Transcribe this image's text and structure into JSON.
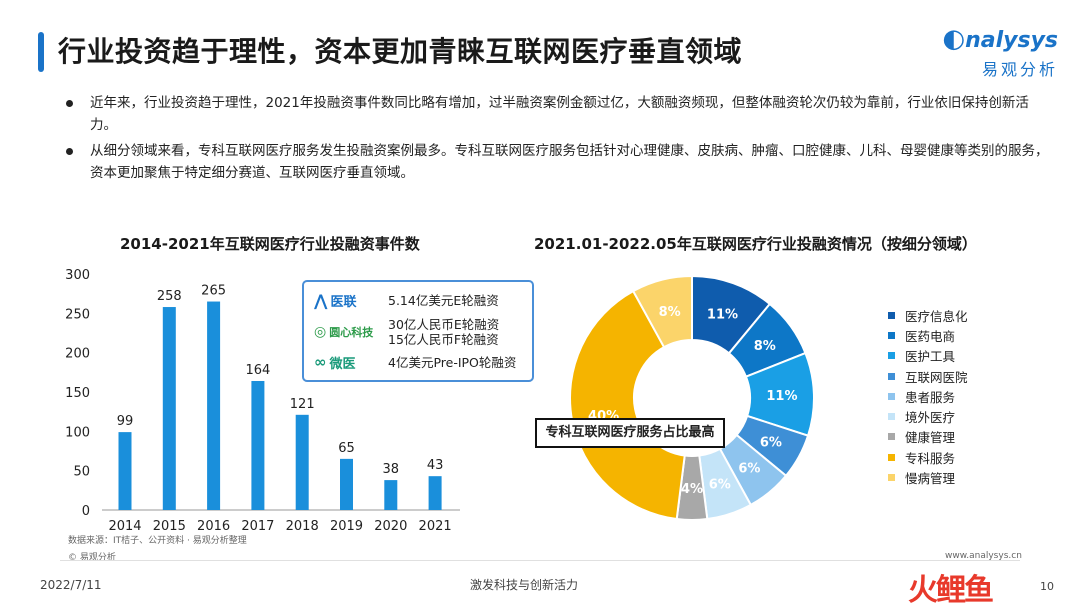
{
  "header": {
    "title": "行业投资趋于理性，资本更加青睐互联网医疗垂直领域",
    "logo_en": "nalysys",
    "logo_cn": "易观分析"
  },
  "bullets": [
    "近年来，行业投资趋于理性，2021年投融资事件数同比略有增加，过半融资案例金额过亿，大额融资频现，但整体融资轮次仍较为靠前，行业依旧保持创新活力。",
    "从细分领域来看，专科互联网医疗服务发生投融资案例最多。专科互联网医疗服务包括针对心理健康、皮肤病、肿瘤、口腔健康、儿科、母婴健康等类别的服务，资本更加聚焦于特定细分赛道、互联网医疗垂直领域。"
  ],
  "left_chart_title": "2014-2021年互联网医疗行业投融资事件数",
  "right_chart_title": "2021.01-2022.05年互联网医疗行业投融资情况（按细分领域）",
  "callout": {
    "rows": [
      {
        "name": "医联",
        "text": "5.14亿美元E轮融资"
      },
      {
        "name": "圆心科技",
        "text": "30亿人民币E轮融资\n15亿人民币F轮融资"
      },
      {
        "name": "微医",
        "text": "4亿美元Pre-IPO轮融资"
      }
    ]
  },
  "pie_callout": "专科互联网医疗服务占比最高",
  "source_note": "数据来源：IT桔子、公开资料 · 易观分析整理",
  "copyright": "© 易观分析",
  "website": "www.analysys.cn",
  "footer": {
    "date": "2022/7/11",
    "slogan": "激发科技与创新活力",
    "page": "10",
    "watermark": "火鲤鱼"
  },
  "chart_data": [
    {
      "type": "bar",
      "title": "2014-2021年互联网医疗行业投融资事件数",
      "categories": [
        "2014",
        "2015",
        "2016",
        "2017",
        "2018",
        "2019",
        "2020",
        "2021"
      ],
      "values": [
        99,
        258,
        265,
        164,
        121,
        65,
        38,
        43
      ],
      "ylim": [
        0,
        300
      ],
      "yticks": [
        0,
        50,
        100,
        150,
        200,
        250,
        300
      ],
      "color": "#1a8fdb"
    },
    {
      "type": "pie",
      "donut": true,
      "title": "2021.01-2022.05年互联网医疗行业投融资情况（按细分领域）",
      "categories": [
        "医疗信息化",
        "医药电商",
        "医护工具",
        "互联网医院",
        "患者服务",
        "境外医疗",
        "健康管理",
        "专科服务",
        "慢病管理"
      ],
      "values": [
        11,
        8,
        11,
        6,
        6,
        6,
        4,
        40,
        8
      ],
      "labels": [
        "11%",
        "8%",
        "11%",
        "6%",
        "6%",
        "6%",
        "4%",
        "40%",
        "8%"
      ],
      "colors": [
        "#0f5cad",
        "#0d77c7",
        "#1a9fe5",
        "#3e8fd6",
        "#8ec4ee",
        "#c4e4f8",
        "#a8a8a8",
        "#f5b400",
        "#fbd46a"
      ],
      "legend_position": "right"
    }
  ]
}
